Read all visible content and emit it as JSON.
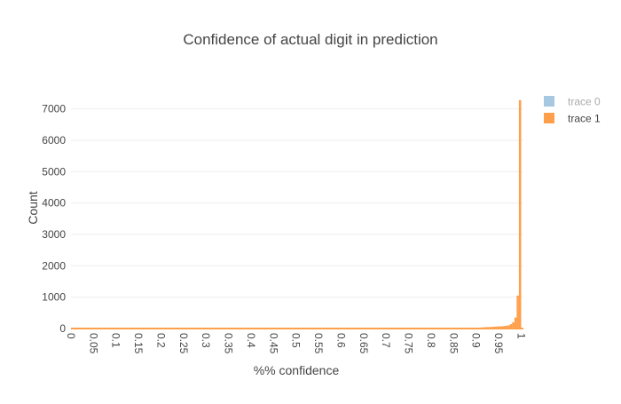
{
  "chart_data": {
    "type": "bar",
    "title": "Confidence of actual digit in prediction",
    "xlabel": "%% confidence",
    "ylabel": "Count",
    "xlim": [
      0,
      1.005
    ],
    "ylim": [
      0,
      7500
    ],
    "x_ticks": [
      "0",
      "0.05",
      "0.1",
      "0.15",
      "0.2",
      "0.25",
      "0.3",
      "0.35",
      "0.4",
      "0.45",
      "0.5",
      "0.55",
      "0.6",
      "0.65",
      "0.7",
      "0.75",
      "0.8",
      "0.85",
      "0.9",
      "0.95",
      "1"
    ],
    "y_ticks": [
      "0",
      "1000",
      "2000",
      "3000",
      "4000",
      "5000",
      "6000",
      "7000"
    ],
    "legend_position": "top-right",
    "grid": true,
    "bin_width": 0.005,
    "series": [
      {
        "name": "trace 0",
        "color": "#a6c8e1",
        "legend_text_color": "#aaaaaa",
        "bins": [],
        "values": []
      },
      {
        "name": "trace 1",
        "color": "#ff9f4a",
        "legend_text_color": "#444444",
        "bins": [
          0.89,
          0.895,
          0.9,
          0.905,
          0.91,
          0.915,
          0.92,
          0.925,
          0.93,
          0.935,
          0.94,
          0.945,
          0.95,
          0.955,
          0.96,
          0.965,
          0.97,
          0.975,
          0.98,
          0.985,
          0.99,
          0.995
        ],
        "values": [
          20,
          22,
          25,
          30,
          35,
          40,
          45,
          45,
          50,
          55,
          60,
          65,
          70,
          70,
          80,
          90,
          100,
          140,
          200,
          350,
          1050,
          7280
        ]
      }
    ]
  }
}
